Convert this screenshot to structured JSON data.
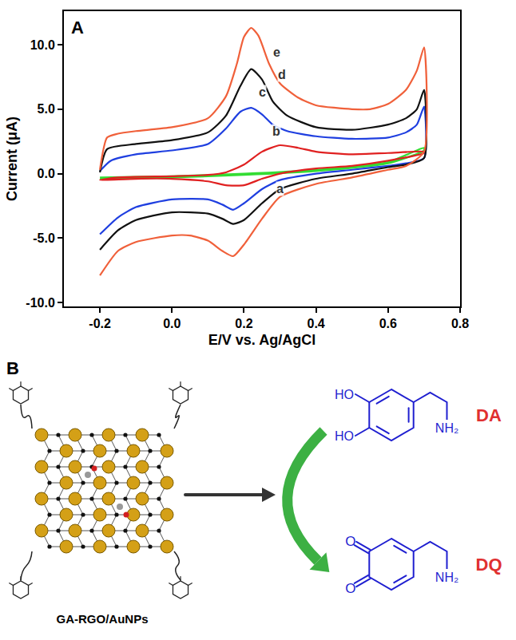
{
  "chart_data": {
    "type": "line",
    "panel_label": "A",
    "xlabel": "E/V vs. Ag/AgCl",
    "ylabel": "Current (μA)",
    "xlim": [
      -0.3,
      0.8
    ],
    "xticks": [
      -0.2,
      {
        "value": 0,
        "label": "0.0"
      },
      0.2,
      0.4,
      0.6,
      0.8
    ],
    "ylim": [
      -10.3,
      12.6
    ],
    "yticks": [
      {
        "value": -10,
        "label": "-10.0"
      },
      {
        "value": -5,
        "label": "-5.0"
      },
      {
        "value": 0,
        "label": "0.0"
      },
      {
        "value": 5,
        "label": "5.0"
      },
      {
        "value": 10,
        "label": "10.0"
      }
    ],
    "grid": false,
    "series": [
      {
        "name": "a",
        "color": "#33dd33",
        "x": [
          -0.2,
          0.0,
          0.2,
          0.4,
          0.6,
          0.7,
          0.7,
          0.6,
          0.4,
          0.2,
          0.0,
          -0.2
        ],
        "values": [
          -0.3,
          -0.2,
          0.0,
          0.3,
          0.9,
          2.0,
          1.8,
          0.8,
          0.2,
          -0.1,
          -0.3,
          -0.4
        ]
      },
      {
        "name": "b",
        "color": "#e02020",
        "x": [
          -0.2,
          -0.15,
          0.0,
          0.1,
          0.15,
          0.2,
          0.25,
          0.3,
          0.35,
          0.4,
          0.5,
          0.6,
          0.7,
          0.7,
          0.6,
          0.5,
          0.4,
          0.3,
          0.25,
          0.2,
          0.15,
          0.1,
          0.0,
          -0.1,
          -0.2
        ],
        "values": [
          -0.5,
          -0.3,
          -0.2,
          -0.1,
          0.1,
          0.7,
          1.7,
          2.2,
          2.0,
          1.7,
          1.5,
          1.6,
          1.7,
          1.6,
          1.0,
          0.6,
          0.4,
          0.0,
          -0.4,
          -0.9,
          -0.9,
          -0.6,
          -0.4,
          -0.4,
          -0.5
        ]
      },
      {
        "name": "c",
        "color": "#1f3fe0",
        "x": [
          -0.2,
          -0.17,
          -0.1,
          0.0,
          0.1,
          0.15,
          0.19,
          0.22,
          0.25,
          0.28,
          0.32,
          0.4,
          0.5,
          0.6,
          0.65,
          0.68,
          0.7,
          0.7,
          0.65,
          0.6,
          0.5,
          0.4,
          0.3,
          0.25,
          0.2,
          0.17,
          0.14,
          0.1,
          0.0,
          -0.1,
          -0.15,
          -0.2
        ],
        "values": [
          0.2,
          1.0,
          1.5,
          1.8,
          2.3,
          3.5,
          4.8,
          5.1,
          4.6,
          3.8,
          3.3,
          2.9,
          2.7,
          2.8,
          3.2,
          3.8,
          5.2,
          1.2,
          0.8,
          0.6,
          0.3,
          0.0,
          -0.5,
          -1.2,
          -2.3,
          -2.8,
          -2.4,
          -2.0,
          -2.0,
          -2.6,
          -3.4,
          -4.7
        ]
      },
      {
        "name": "d",
        "color": "#111111",
        "x": [
          -0.2,
          -0.18,
          -0.1,
          0.0,
          0.1,
          0.15,
          0.19,
          0.22,
          0.25,
          0.28,
          0.32,
          0.4,
          0.5,
          0.6,
          0.65,
          0.68,
          0.7,
          0.7,
          0.65,
          0.6,
          0.5,
          0.4,
          0.3,
          0.25,
          0.2,
          0.17,
          0.14,
          0.1,
          0.0,
          -0.1,
          -0.15,
          -0.2
        ],
        "values": [
          0.1,
          1.9,
          2.3,
          2.6,
          3.2,
          4.5,
          6.8,
          8.1,
          7.3,
          5.6,
          4.5,
          3.6,
          3.4,
          3.8,
          4.3,
          5.0,
          6.5,
          1.2,
          0.7,
          0.5,
          0.0,
          -0.4,
          -1.2,
          -2.3,
          -3.6,
          -3.9,
          -3.5,
          -3.1,
          -3.0,
          -3.6,
          -4.4,
          -5.9
        ]
      },
      {
        "name": "e",
        "color": "#f0603a",
        "x": [
          -0.2,
          -0.18,
          -0.15,
          -0.1,
          0.0,
          0.1,
          0.15,
          0.18,
          0.2,
          0.22,
          0.24,
          0.27,
          0.3,
          0.35,
          0.4,
          0.5,
          0.55,
          0.6,
          0.65,
          0.68,
          0.7,
          0.7,
          0.65,
          0.6,
          0.5,
          0.4,
          0.3,
          0.25,
          0.2,
          0.17,
          0.14,
          0.1,
          0.05,
          0.0,
          -0.1,
          -0.15,
          -0.2
        ],
        "values": [
          0.3,
          2.8,
          3.1,
          3.3,
          3.6,
          4.3,
          6.0,
          8.5,
          10.6,
          11.3,
          10.7,
          8.5,
          7.0,
          5.9,
          5.3,
          5.0,
          5.0,
          5.4,
          6.5,
          8.0,
          9.8,
          1.7,
          0.6,
          0.3,
          -0.3,
          -0.8,
          -1.8,
          -3.5,
          -5.5,
          -6.4,
          -6.0,
          -5.2,
          -4.8,
          -4.8,
          -5.3,
          -6.0,
          -7.9
        ]
      }
    ]
  },
  "diagram": {
    "label": "B",
    "material": "GA-RGO/AuNPs",
    "reactant": {
      "name": "DA",
      "groups": [
        "HO",
        "HO",
        "NH₂"
      ]
    },
    "product": {
      "name": "DQ",
      "groups": [
        "O",
        "O",
        "NH₂"
      ]
    }
  }
}
